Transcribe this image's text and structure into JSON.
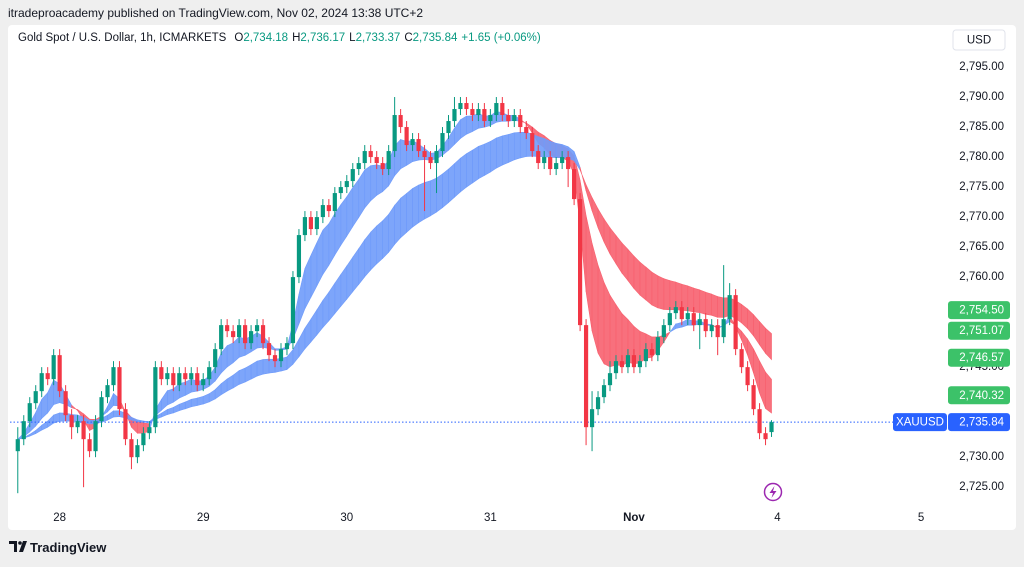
{
  "header": {
    "publisher": "itradeproacademy published on TradingView.com, Nov 02, 2024 13:38 UTC+2",
    "brand": "TradingView"
  },
  "chart_data": {
    "type": "candlestick",
    "title": "Gold Spot / U.S. Dollar, 1h, ICMARKETS",
    "ohlc_legend": [
      [
        "O",
        "2,734.18"
      ],
      [
        "H",
        "2,736.17"
      ],
      [
        "L",
        "2,733.37"
      ],
      [
        "C",
        "2,735.84"
      ]
    ],
    "change": "+1.65 (+0.06%)",
    "currency": "USD",
    "symbol": "XAUUSD",
    "up_color": "#089981",
    "down_color": "#f23645",
    "xlim": [
      -1.3,
      155
    ],
    "ylim": [
      2721.2,
      2802
    ],
    "xticks": [
      {
        "value": 7,
        "label": "28"
      },
      {
        "value": 31,
        "label": "29"
      },
      {
        "value": 55,
        "label": "30"
      },
      {
        "value": 79,
        "label": "31"
      },
      {
        "value": 103,
        "label": "Nov"
      },
      {
        "value": 127,
        "label": "4"
      },
      {
        "value": 151,
        "label": "5"
      }
    ],
    "yticks": [
      {
        "value": 2795,
        "label": "2,795.00"
      },
      {
        "value": 2790,
        "label": "2,790.00"
      },
      {
        "value": 2785,
        "label": "2,785.00"
      },
      {
        "value": 2780,
        "label": "2,780.00"
      },
      {
        "value": 2775,
        "label": "2,775.00"
      },
      {
        "value": 2770,
        "label": "2,770.00"
      },
      {
        "value": 2765,
        "label": "2,765.00"
      },
      {
        "value": 2760,
        "label": "2,760.00"
      },
      {
        "value": 2745,
        "label": "2,745.00"
      },
      {
        "value": 2730,
        "label": "2,730.00"
      },
      {
        "value": 2725,
        "label": "2,725.00"
      }
    ],
    "price_labels": [
      {
        "value": 2754.5,
        "label": "2,754.50"
      },
      {
        "value": 2751.07,
        "label": "2,751.07"
      },
      {
        "value": 2746.57,
        "label": "2,746.57"
      },
      {
        "value": 2740.32,
        "label": "2,740.32"
      }
    ],
    "price_label_color": "#3cc269",
    "last_price": {
      "value": 2735.84,
      "label": "2,735.84"
    },
    "last_price_color": "#2962ff",
    "ohlc": [
      [
        2731,
        2735,
        2724,
        2733
      ],
      [
        2733,
        2737,
        2732,
        2736
      ],
      [
        2736,
        2740,
        2735,
        2739
      ],
      [
        2739,
        2742,
        2738,
        2741
      ],
      [
        2741,
        2745,
        2740,
        2744
      ],
      [
        2744,
        2745,
        2742,
        2743
      ],
      [
        2743,
        2748,
        2742,
        2747
      ],
      [
        2747,
        2748,
        2740,
        2741
      ],
      [
        2741,
        2742,
        2736,
        2737
      ],
      [
        2737,
        2738,
        2733,
        2735
      ],
      [
        2735,
        2737,
        2734,
        2736
      ],
      [
        2736,
        2737,
        2725,
        2733
      ],
      [
        2733,
        2734,
        2730,
        2731
      ],
      [
        2731,
        2737,
        2730,
        2736
      ],
      [
        2736,
        2741,
        2735,
        2740
      ],
      [
        2740,
        2743,
        2739,
        2742
      ],
      [
        2742,
        2746,
        2741,
        2745
      ],
      [
        2745,
        2746,
        2737,
        2738
      ],
      [
        2738,
        2739,
        2732,
        2733
      ],
      [
        2733,
        2734,
        2728,
        2730
      ],
      [
        2730,
        2733,
        2729,
        2732
      ],
      [
        2732,
        2735,
        2731,
        2734
      ],
      [
        2734,
        2736,
        2733,
        2735
      ],
      [
        2735,
        2746,
        2734,
        2745
      ],
      [
        2745,
        2746,
        2742,
        2743
      ],
      [
        2743,
        2745,
        2742,
        2744
      ],
      [
        2744,
        2745,
        2741,
        2742
      ],
      [
        2742,
        2745,
        2741,
        2744
      ],
      [
        2744,
        2745,
        2742,
        2743
      ],
      [
        2743,
        2745,
        2742,
        2744
      ],
      [
        2744,
        2745,
        2741,
        2742
      ],
      [
        2742,
        2744,
        2741,
        2743
      ],
      [
        2743,
        2746,
        2742,
        2745
      ],
      [
        2745,
        2749,
        2744,
        2748
      ],
      [
        2748,
        2753,
        2747,
        2752
      ],
      [
        2752,
        2753,
        2750,
        2751
      ],
      [
        2751,
        2752,
        2749,
        2750
      ],
      [
        2750,
        2753,
        2749,
        2752
      ],
      [
        2752,
        2753,
        2748,
        2749
      ],
      [
        2749,
        2752,
        2748,
        2751
      ],
      [
        2751,
        2753,
        2750,
        2752
      ],
      [
        2752,
        2753,
        2748,
        2749
      ],
      [
        2749,
        2750,
        2746,
        2747
      ],
      [
        2747,
        2748,
        2745,
        2746
      ],
      [
        2746,
        2749,
        2745,
        2748
      ],
      [
        2748,
        2750,
        2747,
        2749
      ],
      [
        2749,
        2761,
        2748,
        2760
      ],
      [
        2760,
        2768,
        2759,
        2767
      ],
      [
        2767,
        2771,
        2766,
        2770
      ],
      [
        2770,
        2771,
        2767,
        2768
      ],
      [
        2768,
        2771,
        2767,
        2770
      ],
      [
        2770,
        2773,
        2769,
        2772
      ],
      [
        2772,
        2773,
        2770,
        2771
      ],
      [
        2771,
        2775,
        2770,
        2774
      ],
      [
        2774,
        2776,
        2773,
        2775
      ],
      [
        2775,
        2777,
        2774,
        2776
      ],
      [
        2776,
        2779,
        2775,
        2778
      ],
      [
        2778,
        2780,
        2777,
        2779
      ],
      [
        2779,
        2782,
        2778,
        2781
      ],
      [
        2781,
        2782,
        2779,
        2780
      ],
      [
        2780,
        2781,
        2778,
        2779
      ],
      [
        2779,
        2780,
        2777,
        2778
      ],
      [
        2778,
        2782,
        2777,
        2781
      ],
      [
        2781,
        2790,
        2780,
        2787
      ],
      [
        2787,
        2788,
        2784,
        2785
      ],
      [
        2785,
        2786,
        2781,
        2782
      ],
      [
        2782,
        2784,
        2781,
        2783
      ],
      [
        2783,
        2784,
        2780,
        2781
      ],
      [
        2781,
        2782,
        2771,
        2780
      ],
      [
        2780,
        2781,
        2778,
        2779
      ],
      [
        2779,
        2782,
        2774,
        2781
      ],
      [
        2781,
        2785,
        2780,
        2784
      ],
      [
        2784,
        2787,
        2783,
        2786
      ],
      [
        2786,
        2790,
        2785,
        2788
      ],
      [
        2788,
        2790,
        2787,
        2789
      ],
      [
        2789,
        2790,
        2787,
        2788
      ],
      [
        2788,
        2789,
        2786,
        2787
      ],
      [
        2787,
        2789,
        2786,
        2788
      ],
      [
        2788,
        2789,
        2785,
        2786
      ],
      [
        2786,
        2788,
        2785,
        2787
      ],
      [
        2787,
        2790,
        2786,
        2789
      ],
      [
        2789,
        2790,
        2786,
        2787
      ],
      [
        2787,
        2788,
        2785,
        2786
      ],
      [
        2786,
        2788,
        2785,
        2787
      ],
      [
        2787,
        2788,
        2784,
        2785
      ],
      [
        2785,
        2786,
        2783,
        2784
      ],
      [
        2784,
        2785,
        2780,
        2781
      ],
      [
        2781,
        2782,
        2778,
        2779
      ],
      [
        2779,
        2781,
        2778,
        2780
      ],
      [
        2780,
        2781,
        2777,
        2778
      ],
      [
        2778,
        2780,
        2777,
        2779
      ],
      [
        2779,
        2781,
        2778,
        2780
      ],
      [
        2780,
        2781,
        2775,
        2778
      ],
      [
        2778,
        2779,
        2772,
        2773
      ],
      [
        2773,
        2774,
        2751,
        2752
      ],
      [
        2752,
        2753,
        2732,
        2735
      ],
      [
        2735,
        2741,
        2731,
        2738
      ],
      [
        2738,
        2741,
        2737,
        2740
      ],
      [
        2740,
        2743,
        2739,
        2742
      ],
      [
        2742,
        2746,
        2741,
        2744
      ],
      [
        2744,
        2747,
        2743,
        2746
      ],
      [
        2746,
        2747,
        2744,
        2745
      ],
      [
        2745,
        2748,
        2744,
        2747
      ],
      [
        2747,
        2748,
        2744,
        2745
      ],
      [
        2745,
        2747,
        2744,
        2746
      ],
      [
        2746,
        2749,
        2745,
        2748
      ],
      [
        2748,
        2749,
        2746,
        2747
      ],
      [
        2747,
        2751,
        2746,
        2750
      ],
      [
        2750,
        2753,
        2749,
        2752
      ],
      [
        2752,
        2755,
        2751,
        2754
      ],
      [
        2754,
        2756,
        2753,
        2755
      ],
      [
        2755,
        2756,
        2752,
        2753
      ],
      [
        2753,
        2755,
        2752,
        2754
      ],
      [
        2754,
        2755,
        2751,
        2752
      ],
      [
        2752,
        2754,
        2748,
        2753
      ],
      [
        2753,
        2754,
        2750,
        2751
      ],
      [
        2751,
        2753,
        2750,
        2752
      ],
      [
        2752,
        2753,
        2747,
        2750
      ],
      [
        2750,
        2762,
        2749,
        2753
      ],
      [
        2753,
        2759,
        2752,
        2757
      ],
      [
        2757,
        2758,
        2747,
        2748
      ],
      [
        2748,
        2749,
        2744,
        2745
      ],
      [
        2745,
        2746,
        2741,
        2742
      ],
      [
        2742,
        2743,
        2737,
        2738
      ],
      [
        2738,
        2739,
        2733,
        2734
      ],
      [
        2734,
        2735,
        2732,
        2733
      ],
      [
        2734.18,
        2736.17,
        2733.37,
        2735.84
      ]
    ]
  }
}
